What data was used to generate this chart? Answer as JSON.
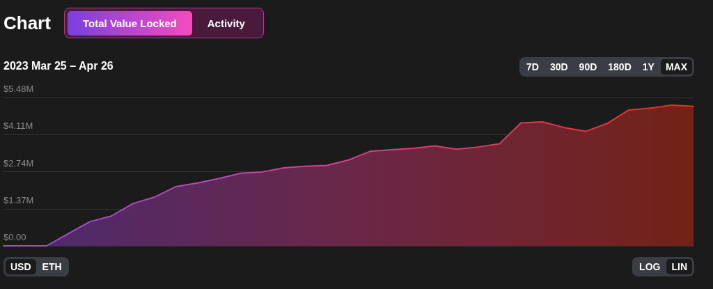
{
  "chart_data": {
    "type": "area",
    "title": "Chart",
    "subtitle": "2023 Mar 25 – Apr 26",
    "annotations": [
      "Total Value Locked",
      "Activity",
      "7D",
      "30D",
      "90D",
      "180D",
      "1Y",
      "MAX",
      "USD",
      "ETH",
      "LOG",
      "LIN"
    ],
    "categories": [
      null,
      null,
      null,
      null,
      null,
      null,
      null,
      null,
      null,
      null,
      null,
      null,
      null,
      null,
      null,
      null,
      null,
      null,
      null,
      null,
      null,
      null,
      null,
      null,
      null,
      null,
      null,
      null,
      null,
      null,
      null,
      null,
      null
    ],
    "series": [
      {
        "color": "#d63f8e",
        "values": [
          0,
          0,
          0,
          0.45,
          0.89,
          1.1,
          1.56,
          1.8,
          2.19,
          2.32,
          2.49,
          2.68,
          2.73,
          2.88,
          2.94,
          2.97,
          3.17,
          3.49,
          3.55,
          3.6,
          3.69,
          3.57,
          3.65,
          3.77,
          4.54,
          4.58,
          4.37,
          4.23,
          4.52,
          5.02,
          5.09,
          5.2,
          5.15
        ]
      }
    ],
    "ylim": [
      0,
      5.48
    ],
    "yticks": [
      {
        "value": 0,
        "label": "$0.00"
      },
      {
        "value": 1.37,
        "label": "$1.37M"
      },
      {
        "value": 2.74,
        "label": "$2.74M"
      },
      {
        "value": 4.11,
        "label": "$4.11M"
      },
      {
        "value": 5.48,
        "label": "$5.48M"
      }
    ],
    "grid": "y",
    "marker": "none",
    "line_style": "solid",
    "tick_labels": "y"
  }
}
